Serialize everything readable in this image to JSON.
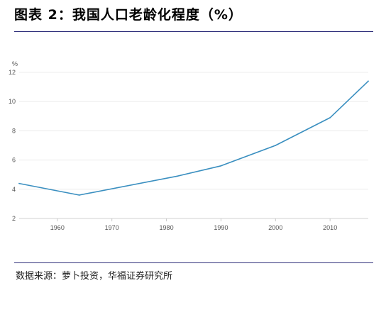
{
  "title": "图表 2：我国人口老龄化程度（%）",
  "source": "数据来源：萝卜投资，华福证券研究所",
  "chart_data": {
    "type": "line",
    "title": "图表 2：我国人口老龄化程度（%）",
    "xlabel": "",
    "ylabel": "%",
    "x": [
      1953,
      1964,
      1982,
      1990,
      2000,
      2010,
      2017
    ],
    "series": [
      {
        "color": "#3a8fc0",
        "values": [
          4.4,
          3.6,
          4.9,
          5.6,
          7.0,
          8.9,
          11.4
        ]
      }
    ],
    "xlim": [
      1953,
      2017
    ],
    "ylim": [
      2,
      12
    ],
    "xticks": [
      1960,
      1970,
      1980,
      1990,
      2000,
      2010
    ],
    "yticks": [
      2,
      4,
      6,
      8,
      10,
      12
    ],
    "xtick_labels": [
      "1960",
      "1970",
      "1980",
      "1990",
      "2000",
      "2010"
    ],
    "ytick_labels": [
      "2",
      "4",
      "6",
      "8",
      "10",
      "12"
    ],
    "grid": "horizontal",
    "legend": "none"
  }
}
